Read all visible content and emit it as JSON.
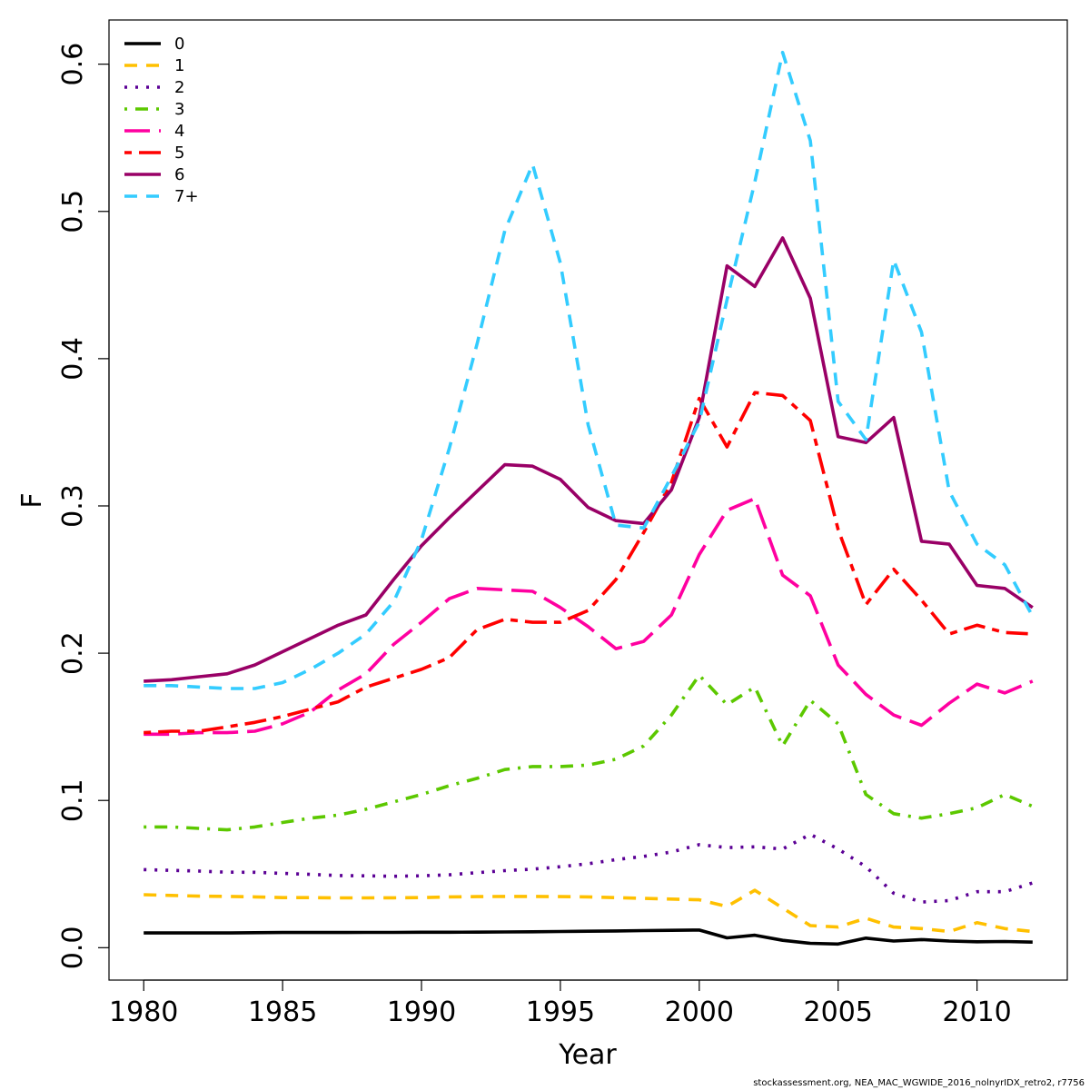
{
  "chart_data": {
    "type": "line",
    "xlabel": "Year",
    "ylabel": "F",
    "xlim": [
      1978.75,
      2013.25
    ],
    "ylim": [
      -0.022,
      0.63
    ],
    "x_ticks": [
      1980,
      1985,
      1990,
      1995,
      2000,
      2005,
      2010
    ],
    "y_ticks": [
      0.0,
      0.1,
      0.2,
      0.3,
      0.4,
      0.5,
      0.6
    ],
    "y_tick_labels": [
      "0.0",
      "0.1",
      "0.2",
      "0.3",
      "0.4",
      "0.5",
      "0.6"
    ],
    "legend_position": "top-left",
    "grid": false,
    "x": [
      1980,
      1981,
      1982,
      1983,
      1984,
      1985,
      1986,
      1987,
      1988,
      1989,
      1990,
      1991,
      1992,
      1993,
      1994,
      1995,
      1996,
      1997,
      1998,
      1999,
      2000,
      2001,
      2002,
      2003,
      2004,
      2005,
      2006,
      2007,
      2008,
      2009,
      2010,
      2011,
      2012
    ],
    "series": [
      {
        "name": "0",
        "color": "#000000",
        "dash": "solid",
        "values": [
          0.01,
          0.01,
          0.01,
          0.01,
          0.0102,
          0.0103,
          0.0103,
          0.0103,
          0.0104,
          0.0104,
          0.0105,
          0.0105,
          0.0106,
          0.0107,
          0.0108,
          0.011,
          0.0112,
          0.0114,
          0.0116,
          0.0118,
          0.012,
          0.0067,
          0.0085,
          0.005,
          0.003,
          0.0025,
          0.0065,
          0.0045,
          0.0055,
          0.0045,
          0.004,
          0.0042,
          0.0038
        ]
      },
      {
        "name": "1",
        "color": "#ffc000",
        "dash": "dashed",
        "values": [
          0.036,
          0.0355,
          0.035,
          0.0348,
          0.0345,
          0.034,
          0.034,
          0.0338,
          0.0338,
          0.0339,
          0.034,
          0.0345,
          0.0347,
          0.0348,
          0.0348,
          0.0347,
          0.0345,
          0.034,
          0.0335,
          0.033,
          0.0325,
          0.028,
          0.039,
          0.027,
          0.015,
          0.014,
          0.02,
          0.014,
          0.013,
          0.011,
          0.017,
          0.013,
          0.011
        ]
      },
      {
        "name": "2",
        "color": "#5b0095",
        "dash": "dotted",
        "values": [
          0.053,
          0.0525,
          0.052,
          0.0513,
          0.0512,
          0.0505,
          0.0498,
          0.049,
          0.0488,
          0.0485,
          0.0488,
          0.0495,
          0.051,
          0.0523,
          0.0533,
          0.055,
          0.057,
          0.0598,
          0.062,
          0.065,
          0.07,
          0.068,
          0.0685,
          0.067,
          0.077,
          0.067,
          0.055,
          0.037,
          0.031,
          0.032,
          0.038,
          0.038,
          0.044
        ]
      },
      {
        "name": "3",
        "color": "#5cc800",
        "dash": "dashdot",
        "values": [
          0.082,
          0.082,
          0.081,
          0.08,
          0.082,
          0.085,
          0.088,
          0.09,
          0.094,
          0.099,
          0.104,
          0.11,
          0.115,
          0.121,
          0.123,
          0.123,
          0.124,
          0.128,
          0.137,
          0.158,
          0.185,
          0.165,
          0.177,
          0.137,
          0.168,
          0.152,
          0.104,
          0.091,
          0.088,
          0.091,
          0.095,
          0.104,
          0.096
        ]
      },
      {
        "name": "4",
        "color": "#ff00a0",
        "dash": "longdash",
        "values": [
          0.145,
          0.145,
          0.146,
          0.146,
          0.147,
          0.152,
          0.16,
          0.175,
          0.186,
          0.206,
          0.221,
          0.237,
          0.244,
          0.243,
          0.242,
          0.231,
          0.218,
          0.203,
          0.208,
          0.226,
          0.267,
          0.297,
          0.305,
          0.253,
          0.239,
          0.192,
          0.172,
          0.158,
          0.151,
          0.166,
          0.179,
          0.173,
          0.181
        ]
      },
      {
        "name": "5",
        "color": "#ff0000",
        "dash": "twodash",
        "values": [
          0.146,
          0.147,
          0.147,
          0.15,
          0.153,
          0.157,
          0.162,
          0.167,
          0.177,
          0.183,
          0.189,
          0.197,
          0.216,
          0.223,
          0.221,
          0.221,
          0.229,
          0.25,
          0.282,
          0.316,
          0.373,
          0.34,
          0.377,
          0.375,
          0.358,
          0.284,
          0.233,
          0.257,
          0.236,
          0.213,
          0.219,
          0.214,
          0.213
        ]
      },
      {
        "name": "6",
        "color": "#990066",
        "dash": "solid",
        "values": [
          0.181,
          0.182,
          0.184,
          0.186,
          0.192,
          0.201,
          0.21,
          0.219,
          0.226,
          0.25,
          0.273,
          0.292,
          0.31,
          0.328,
          0.327,
          0.318,
          0.299,
          0.29,
          0.288,
          0.311,
          0.36,
          0.463,
          0.449,
          0.482,
          0.441,
          0.347,
          0.343,
          0.36,
          0.276,
          0.274,
          0.246,
          0.244,
          0.231
        ]
      },
      {
        "name": "7+",
        "color": "#33ccff",
        "dash": "dashed",
        "values": [
          0.178,
          0.178,
          0.177,
          0.176,
          0.176,
          0.18,
          0.189,
          0.2,
          0.213,
          0.235,
          0.277,
          0.339,
          0.41,
          0.487,
          0.532,
          0.465,
          0.355,
          0.287,
          0.285,
          0.32,
          0.357,
          0.44,
          0.52,
          0.608,
          0.548,
          0.371,
          0.345,
          0.467,
          0.418,
          0.31,
          0.274,
          0.26,
          0.225
        ]
      }
    ]
  },
  "footer_text": "stockassessment.org, NEA_MAC_WGWIDE_2016_nolnyrIDX_retro2, r7756"
}
